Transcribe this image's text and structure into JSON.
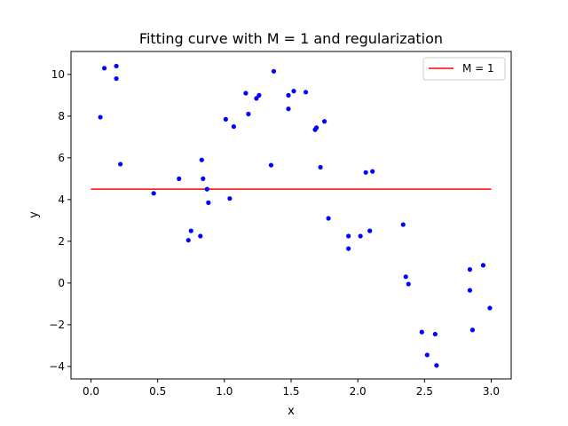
{
  "chart_data": {
    "type": "scatter",
    "title": "Fitting curve with M = 1 and regularization",
    "xlabel": "x",
    "ylabel": "y",
    "xlim": [
      -0.15,
      3.15
    ],
    "ylim": [
      -4.6,
      11.1
    ],
    "xticks": [
      0.0,
      0.5,
      1.0,
      1.5,
      2.0,
      2.5,
      3.0
    ],
    "xtick_labels": [
      "0.0",
      "0.5",
      "1.0",
      "1.5",
      "2.0",
      "2.5",
      "3.0"
    ],
    "yticks": [
      -4,
      -2,
      0,
      2,
      4,
      6,
      8,
      10
    ],
    "ytick_labels": [
      "−4",
      "−2",
      "0",
      "2",
      "4",
      "6",
      "8",
      "10"
    ],
    "grid": false,
    "legend_position": "top-right",
    "points_color": "#0000ff",
    "series": [
      {
        "kind": "points",
        "points": [
          [
            0.07,
            7.95
          ],
          [
            0.1,
            10.3
          ],
          [
            0.19,
            10.4
          ],
          [
            0.19,
            9.8
          ],
          [
            0.22,
            5.7
          ],
          [
            0.47,
            4.3
          ],
          [
            0.66,
            5.0
          ],
          [
            0.73,
            2.05
          ],
          [
            0.75,
            2.5
          ],
          [
            0.82,
            2.25
          ],
          [
            0.83,
            5.9
          ],
          [
            0.84,
            5.0
          ],
          [
            0.87,
            4.5
          ],
          [
            0.88,
            3.85
          ],
          [
            1.01,
            7.85
          ],
          [
            1.04,
            4.05
          ],
          [
            1.07,
            7.5
          ],
          [
            1.16,
            9.1
          ],
          [
            1.18,
            8.1
          ],
          [
            1.24,
            8.85
          ],
          [
            1.26,
            9.0
          ],
          [
            1.35,
            5.65
          ],
          [
            1.37,
            10.15
          ],
          [
            1.48,
            9.0
          ],
          [
            1.48,
            8.35
          ],
          [
            1.52,
            9.2
          ],
          [
            1.61,
            9.15
          ],
          [
            1.68,
            7.35
          ],
          [
            1.69,
            7.45
          ],
          [
            1.72,
            5.55
          ],
          [
            1.75,
            7.75
          ],
          [
            1.78,
            3.1
          ],
          [
            1.93,
            2.25
          ],
          [
            1.93,
            1.65
          ],
          [
            2.02,
            2.25
          ],
          [
            2.06,
            5.3
          ],
          [
            2.09,
            2.5
          ],
          [
            2.11,
            5.35
          ],
          [
            2.34,
            2.8
          ],
          [
            2.36,
            0.3
          ],
          [
            2.38,
            -0.05
          ],
          [
            2.48,
            -2.35
          ],
          [
            2.52,
            -3.45
          ],
          [
            2.58,
            -2.45
          ],
          [
            2.59,
            -3.95
          ],
          [
            2.84,
            0.65
          ],
          [
            2.84,
            -0.35
          ],
          [
            2.86,
            -2.25
          ],
          [
            2.94,
            0.85
          ],
          [
            2.99,
            -1.2
          ]
        ]
      },
      {
        "kind": "line",
        "name": "M = 1",
        "color": "#ff0000",
        "x": [
          0.0,
          3.0
        ],
        "y": [
          4.5,
          4.5
        ]
      }
    ]
  }
}
